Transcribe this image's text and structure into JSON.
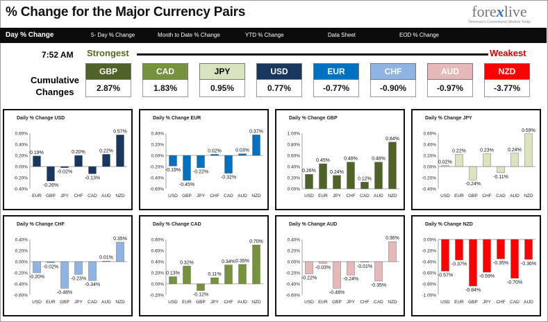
{
  "header": {
    "title": "% Change for the Major Currency Pairs",
    "logo_text": "forexlive",
    "logo_tagline": "Tomorrow's Conventional Wisdom Today"
  },
  "nav": {
    "items": [
      "Day % Change",
      "5- Day % Change",
      "Month to Date % Change",
      "YTD % Change",
      "Data Sheet",
      "EOD % Change"
    ],
    "active_index": 0
  },
  "summary": {
    "time": "7:52 AM",
    "strongest_label": "Strongest",
    "weakest_label": "Weakest",
    "cumulative_label": "Cumulative Changes",
    "currencies": [
      {
        "code": "GBP",
        "value": "2.87%",
        "color": "#4f6228",
        "text_color": "#ffffff"
      },
      {
        "code": "CAD",
        "value": "1.83%",
        "color": "#76923c",
        "text_color": "#ffffff"
      },
      {
        "code": "JPY",
        "value": "0.95%",
        "color": "#d7e4bd",
        "text_color": "#000000"
      },
      {
        "code": "USD",
        "value": "0.77%",
        "color": "#17375e",
        "text_color": "#ffffff"
      },
      {
        "code": "EUR",
        "value": "-0.77%",
        "color": "#0070c0",
        "text_color": "#ffffff"
      },
      {
        "code": "CHF",
        "value": "-0.90%",
        "color": "#8db4e2",
        "text_color": "#ffffff"
      },
      {
        "code": "AUD",
        "value": "-0.97%",
        "color": "#e6b9b8",
        "text_color": "#ffffff"
      },
      {
        "code": "NZD",
        "value": "-3.77%",
        "color": "#ff0000",
        "text_color": "#ffffff"
      }
    ]
  },
  "chart_data": [
    {
      "type": "bar",
      "title": "Daily % Change USD",
      "categories": [
        "EUR",
        "GBP",
        "JPY",
        "CHF",
        "CAD",
        "AUD",
        "NZD"
      ],
      "values": [
        0.19,
        -0.26,
        -0.02,
        0.2,
        -0.13,
        0.22,
        0.57
      ],
      "labels": [
        "0.19%",
        "-0.26%",
        "-0.02%",
        "0.20%",
        "-0.13%",
        "0.22%",
        "0.57%"
      ],
      "ylim": [
        -0.4,
        0.6
      ],
      "ticks": [
        "-0.40%",
        "-0.20%",
        "0.00%",
        "0.20%",
        "0.40%",
        "0.60%"
      ],
      "color": "#17375e"
    },
    {
      "type": "bar",
      "title": "Daily % Change EUR",
      "categories": [
        "USD",
        "GBP",
        "JPY",
        "CHF",
        "CAD",
        "AUD",
        "NZD"
      ],
      "values": [
        -0.19,
        -0.45,
        -0.22,
        0.02,
        -0.32,
        0.03,
        0.37
      ],
      "labels": [
        "-0.19%",
        "-0.45%",
        "-0.22%",
        "0.02%",
        "-0.32%",
        "0.03%",
        "0.37%"
      ],
      "ylim": [
        -0.6,
        0.4
      ],
      "ticks": [
        "-0.60%",
        "-0.40%",
        "-0.20%",
        "0.00%",
        "0.20%",
        "0.40%"
      ],
      "color": "#0070c0"
    },
    {
      "type": "bar",
      "title": "Daily % Change GBP",
      "categories": [
        "USD",
        "EUR",
        "JPY",
        "CHF",
        "CAD",
        "AUD",
        "NZD"
      ],
      "values": [
        0.26,
        0.45,
        0.24,
        0.48,
        0.12,
        0.48,
        0.84
      ],
      "labels": [
        "0.26%",
        "0.45%",
        "0.24%",
        "0.48%",
        "0.12%",
        "0.48%",
        "0.84%"
      ],
      "ylim": [
        0,
        1.0
      ],
      "ticks": [
        "0.00%",
        "0.20%",
        "0.40%",
        "0.60%",
        "0.80%",
        "1.00%"
      ],
      "color": "#4f6228"
    },
    {
      "type": "bar",
      "title": "Daily % Change JPY",
      "categories": [
        "USD",
        "EUR",
        "GBP",
        "CHF",
        "CAD",
        "AUD",
        "NZD"
      ],
      "values": [
        0.02,
        0.22,
        -0.24,
        0.23,
        -0.11,
        0.24,
        0.59
      ],
      "labels": [
        "0.02%",
        "0.22%",
        "-0.24%",
        "0.23%",
        "-0.11%",
        "0.24%",
        "0.59%"
      ],
      "ylim": [
        -0.4,
        0.6
      ],
      "ticks": [
        "-0.40%",
        "-0.20%",
        "0.00%",
        "0.20%",
        "0.40%",
        "0.60%"
      ],
      "color": "#d7e4bd"
    },
    {
      "type": "bar",
      "title": "Daily % Change CHF",
      "categories": [
        "USD",
        "EUR",
        "GBP",
        "JPY",
        "CAD",
        "AUD",
        "NZD"
      ],
      "values": [
        -0.2,
        -0.02,
        -0.48,
        -0.23,
        -0.34,
        0.01,
        0.35
      ],
      "labels": [
        "-0.20%",
        "-0.02%",
        "-0.48%",
        "-0.23%",
        "-0.34%",
        "0.01%",
        "0.35%"
      ],
      "ylim": [
        -0.6,
        0.4
      ],
      "ticks": [
        "-0.60%",
        "-0.40%",
        "-0.20%",
        "0.00%",
        "0.20%",
        "0.40%"
      ],
      "color": "#8db4e2"
    },
    {
      "type": "bar",
      "title": "Daily % Change CAD",
      "categories": [
        "USD",
        "EUR",
        "GBP",
        "JPY",
        "CHF",
        "AUD",
        "NZD"
      ],
      "values": [
        0.13,
        0.32,
        -0.12,
        0.11,
        0.34,
        0.35,
        0.7
      ],
      "labels": [
        "0.13%",
        "0.32%",
        "-0.12%",
        "0.11%",
        "0.34%",
        "0.35%",
        "0.70%"
      ],
      "ylim": [
        -0.2,
        0.8
      ],
      "ticks": [
        "-0.20%",
        "0.00%",
        "0.20%",
        "0.40%",
        "0.60%",
        "0.80%"
      ],
      "color": "#76923c"
    },
    {
      "type": "bar",
      "title": "Daily % Change AUD",
      "categories": [
        "USD",
        "EUR",
        "GBP",
        "JPY",
        "CHF",
        "CAD",
        "NZD"
      ],
      "values": [
        -0.22,
        -0.03,
        -0.48,
        -0.24,
        -0.01,
        -0.35,
        0.36
      ],
      "labels": [
        "-0.22%",
        "-0.03%",
        "-0.48%",
        "-0.24%",
        "-0.01%",
        "-0.35%",
        "0.36%"
      ],
      "ylim": [
        -0.6,
        0.4
      ],
      "ticks": [
        "-0.60%",
        "-0.40%",
        "-0.20%",
        "0.00%",
        "0.20%",
        "0.40%"
      ],
      "color": "#e6b9b8"
    },
    {
      "type": "bar",
      "title": "Daily % Change NZD",
      "categories": [
        "USD",
        "EUR",
        "GBP",
        "JPY",
        "CHF",
        "CAD",
        "AUD"
      ],
      "values": [
        -0.57,
        -0.37,
        -0.84,
        -0.59,
        -0.35,
        -0.7,
        -0.36
      ],
      "labels": [
        "-0.57%",
        "-0.37%",
        "-0.84%",
        "-0.59%",
        "-0.35%",
        "-0.70%",
        "-0.36%"
      ],
      "ylim": [
        -1.0,
        0
      ],
      "ticks": [
        "-1.00%",
        "-0.80%",
        "-0.60%",
        "-0.40%",
        "-0.20%",
        "0.00%"
      ],
      "color": "#ff0000"
    }
  ]
}
